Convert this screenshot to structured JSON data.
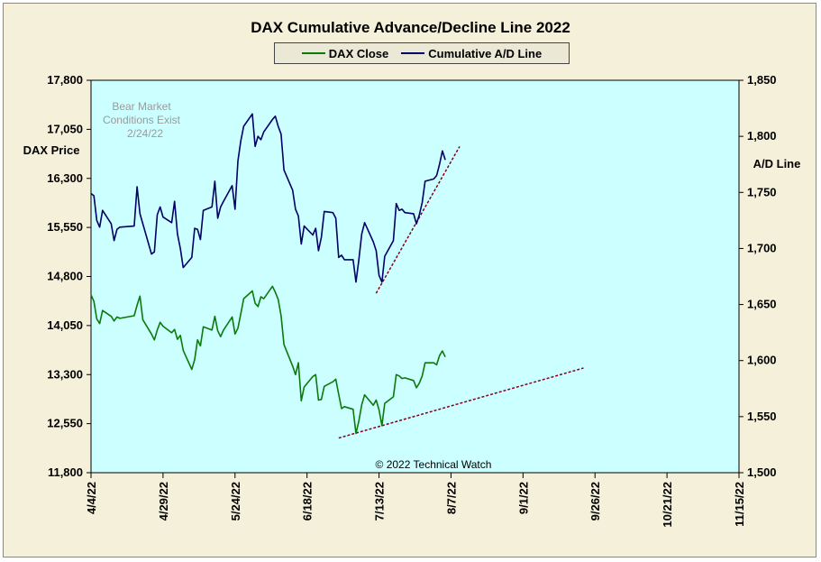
{
  "chart_data": {
    "type": "line",
    "title": "DAX Cumulative Advance/Decline Line 2022",
    "ylabel_left": "DAX Price",
    "ylabel_right": "A/D Line",
    "x_ticks": [
      "4/4/22",
      "4/29/22",
      "5/24/22",
      "6/18/22",
      "7/13/22",
      "8/7/22",
      "9/1/22",
      "9/26/22",
      "10/21/22",
      "11/15/22"
    ],
    "xlim": [
      "2022-04-04",
      "2022-11-15"
    ],
    "ylim_left": [
      11800,
      17800
    ],
    "yticks_left": [
      "11,800",
      "12,550",
      "13,300",
      "14,050",
      "14,800",
      "15,550",
      "16,300",
      "17,050",
      "17,800"
    ],
    "ylim_right": [
      1500,
      1850
    ],
    "yticks_right": [
      "1,500",
      "1,550",
      "1,600",
      "1,650",
      "1,700",
      "1,750",
      "1,800",
      "1,850"
    ],
    "plot_background": "#ccffff",
    "grid": false,
    "legend_position": "top-center",
    "series": [
      {
        "name": "DAX Close",
        "axis": "left",
        "color": "#0a7a0a",
        "points": [
          [
            "2022-04-04",
            14520
          ],
          [
            "2022-04-05",
            14420
          ],
          [
            "2022-04-06",
            14150
          ],
          [
            "2022-04-07",
            14080
          ],
          [
            "2022-04-08",
            14280
          ],
          [
            "2022-04-11",
            14190
          ],
          [
            "2022-04-12",
            14120
          ],
          [
            "2022-04-13",
            14180
          ],
          [
            "2022-04-14",
            14160
          ],
          [
            "2022-04-19",
            14200
          ],
          [
            "2022-04-20",
            14360
          ],
          [
            "2022-04-21",
            14500
          ],
          [
            "2022-04-22",
            14140
          ],
          [
            "2022-04-25",
            13920
          ],
          [
            "2022-04-26",
            13830
          ],
          [
            "2022-04-27",
            13980
          ],
          [
            "2022-04-28",
            14100
          ],
          [
            "2022-04-29",
            14040
          ],
          [
            "2022-05-02",
            13940
          ],
          [
            "2022-05-03",
            13990
          ],
          [
            "2022-05-04",
            13840
          ],
          [
            "2022-05-05",
            13900
          ],
          [
            "2022-05-06",
            13670
          ],
          [
            "2022-05-09",
            13380
          ],
          [
            "2022-05-10",
            13530
          ],
          [
            "2022-05-11",
            13830
          ],
          [
            "2022-05-12",
            13740
          ],
          [
            "2022-05-13",
            14030
          ],
          [
            "2022-05-16",
            13980
          ],
          [
            "2022-05-17",
            14190
          ],
          [
            "2022-05-18",
            13970
          ],
          [
            "2022-05-19",
            13880
          ],
          [
            "2022-05-20",
            13980
          ],
          [
            "2022-05-23",
            14180
          ],
          [
            "2022-05-24",
            13920
          ],
          [
            "2022-05-25",
            14010
          ],
          [
            "2022-05-26",
            14230
          ],
          [
            "2022-05-27",
            14460
          ],
          [
            "2022-05-30",
            14580
          ],
          [
            "2022-05-31",
            14390
          ],
          [
            "2022-06-01",
            14340
          ],
          [
            "2022-06-02",
            14490
          ],
          [
            "2022-06-03",
            14460
          ],
          [
            "2022-06-06",
            14650
          ],
          [
            "2022-06-07",
            14560
          ],
          [
            "2022-06-08",
            14450
          ],
          [
            "2022-06-09",
            14200
          ],
          [
            "2022-06-10",
            13760
          ],
          [
            "2022-06-13",
            13430
          ],
          [
            "2022-06-14",
            13300
          ],
          [
            "2022-06-15",
            13480
          ],
          [
            "2022-06-16",
            12900
          ],
          [
            "2022-06-17",
            13110
          ],
          [
            "2022-06-20",
            13270
          ],
          [
            "2022-06-21",
            13300
          ],
          [
            "2022-06-22",
            12910
          ],
          [
            "2022-06-23",
            12920
          ],
          [
            "2022-06-24",
            13120
          ],
          [
            "2022-06-27",
            13190
          ],
          [
            "2022-06-28",
            13230
          ],
          [
            "2022-06-29",
            13000
          ],
          [
            "2022-06-30",
            12780
          ],
          [
            "2022-07-01",
            12810
          ],
          [
            "2022-07-04",
            12770
          ],
          [
            "2022-07-05",
            12400
          ],
          [
            "2022-07-06",
            12590
          ],
          [
            "2022-07-07",
            12840
          ],
          [
            "2022-07-08",
            12990
          ],
          [
            "2022-07-11",
            12830
          ],
          [
            "2022-07-12",
            12910
          ],
          [
            "2022-07-13",
            12760
          ],
          [
            "2022-07-14",
            12520
          ],
          [
            "2022-07-15",
            12860
          ],
          [
            "2022-07-18",
            12960
          ],
          [
            "2022-07-19",
            13300
          ],
          [
            "2022-07-20",
            13280
          ],
          [
            "2022-07-21",
            13240
          ],
          [
            "2022-07-22",
            13250
          ],
          [
            "2022-07-25",
            13210
          ],
          [
            "2022-07-26",
            13100
          ],
          [
            "2022-07-27",
            13170
          ],
          [
            "2022-07-28",
            13280
          ],
          [
            "2022-07-29",
            13480
          ],
          [
            "2022-08-01",
            13480
          ],
          [
            "2022-08-02",
            13450
          ],
          [
            "2022-08-03",
            13590
          ],
          [
            "2022-08-04",
            13660
          ],
          [
            "2022-08-05",
            13570
          ]
        ]
      },
      {
        "name": "Cumulative A/D Line",
        "axis": "right",
        "color": "#000066",
        "points": [
          [
            "2022-04-04",
            1749
          ],
          [
            "2022-04-05",
            1747
          ],
          [
            "2022-04-06",
            1725
          ],
          [
            "2022-04-07",
            1719
          ],
          [
            "2022-04-08",
            1734
          ],
          [
            "2022-04-11",
            1722
          ],
          [
            "2022-04-12",
            1707
          ],
          [
            "2022-04-13",
            1717
          ],
          [
            "2022-04-14",
            1719
          ],
          [
            "2022-04-19",
            1720
          ],
          [
            "2022-04-20",
            1755
          ],
          [
            "2022-04-21",
            1731
          ],
          [
            "2022-04-22",
            1722
          ],
          [
            "2022-04-25",
            1695
          ],
          [
            "2022-04-26",
            1697
          ],
          [
            "2022-04-27",
            1730
          ],
          [
            "2022-04-28",
            1737
          ],
          [
            "2022-04-29",
            1728
          ],
          [
            "2022-05-02",
            1723
          ],
          [
            "2022-05-03",
            1742
          ],
          [
            "2022-05-04",
            1713
          ],
          [
            "2022-05-05",
            1700
          ],
          [
            "2022-05-06",
            1683
          ],
          [
            "2022-05-09",
            1692
          ],
          [
            "2022-05-10",
            1718
          ],
          [
            "2022-05-11",
            1717
          ],
          [
            "2022-05-12",
            1708
          ],
          [
            "2022-05-13",
            1734
          ],
          [
            "2022-05-16",
            1737
          ],
          [
            "2022-05-17",
            1760
          ],
          [
            "2022-05-18",
            1727
          ],
          [
            "2022-05-19",
            1737
          ],
          [
            "2022-05-20",
            1742
          ],
          [
            "2022-05-23",
            1756
          ],
          [
            "2022-05-24",
            1735
          ],
          [
            "2022-05-25",
            1778
          ],
          [
            "2022-05-26",
            1796
          ],
          [
            "2022-05-27",
            1809
          ],
          [
            "2022-05-30",
            1820
          ],
          [
            "2022-05-31",
            1791
          ],
          [
            "2022-06-01",
            1800
          ],
          [
            "2022-06-02",
            1797
          ],
          [
            "2022-06-03",
            1804
          ],
          [
            "2022-06-06",
            1815
          ],
          [
            "2022-06-07",
            1818
          ],
          [
            "2022-06-08",
            1809
          ],
          [
            "2022-06-09",
            1802
          ],
          [
            "2022-06-10",
            1770
          ],
          [
            "2022-06-13",
            1752
          ],
          [
            "2022-06-14",
            1735
          ],
          [
            "2022-06-15",
            1729
          ],
          [
            "2022-06-16",
            1704
          ],
          [
            "2022-06-17",
            1720
          ],
          [
            "2022-06-20",
            1712
          ],
          [
            "2022-06-21",
            1718
          ],
          [
            "2022-06-22",
            1698
          ],
          [
            "2022-06-23",
            1710
          ],
          [
            "2022-06-24",
            1733
          ],
          [
            "2022-06-27",
            1732
          ],
          [
            "2022-06-28",
            1727
          ],
          [
            "2022-06-29",
            1692
          ],
          [
            "2022-06-30",
            1694
          ],
          [
            "2022-07-01",
            1690
          ],
          [
            "2022-07-04",
            1690
          ],
          [
            "2022-07-05",
            1670
          ],
          [
            "2022-07-06",
            1690
          ],
          [
            "2022-07-07",
            1713
          ],
          [
            "2022-07-08",
            1723
          ],
          [
            "2022-07-11",
            1706
          ],
          [
            "2022-07-12",
            1698
          ],
          [
            "2022-07-13",
            1676
          ],
          [
            "2022-07-14",
            1670
          ],
          [
            "2022-07-15",
            1693
          ],
          [
            "2022-07-18",
            1707
          ],
          [
            "2022-07-19",
            1740
          ],
          [
            "2022-07-20",
            1734
          ],
          [
            "2022-07-21",
            1735
          ],
          [
            "2022-07-22",
            1732
          ],
          [
            "2022-07-25",
            1731
          ],
          [
            "2022-07-26",
            1722
          ],
          [
            "2022-07-27",
            1730
          ],
          [
            "2022-07-28",
            1741
          ],
          [
            "2022-07-29",
            1760
          ],
          [
            "2022-08-01",
            1762
          ],
          [
            "2022-08-02",
            1765
          ],
          [
            "2022-08-03",
            1775
          ],
          [
            "2022-08-04",
            1787
          ],
          [
            "2022-08-05",
            1779
          ]
        ]
      }
    ],
    "trendlines": [
      {
        "axis": "right",
        "color": "#800020",
        "dashed": true,
        "from": [
          "2022-07-12",
          1660
        ],
        "to": [
          "2022-08-10",
          1791
        ]
      },
      {
        "axis": "left",
        "color": "#800020",
        "dashed": true,
        "from": [
          "2022-06-29",
          12330
        ],
        "to": [
          "2022-09-22",
          13400
        ]
      }
    ],
    "annotations": [
      {
        "lines": [
          "Bear Market",
          "Conditions Exist",
          "2/24/22"
        ]
      },
      {
        "lines": [
          "© 2022 Technical Watch"
        ]
      }
    ]
  }
}
